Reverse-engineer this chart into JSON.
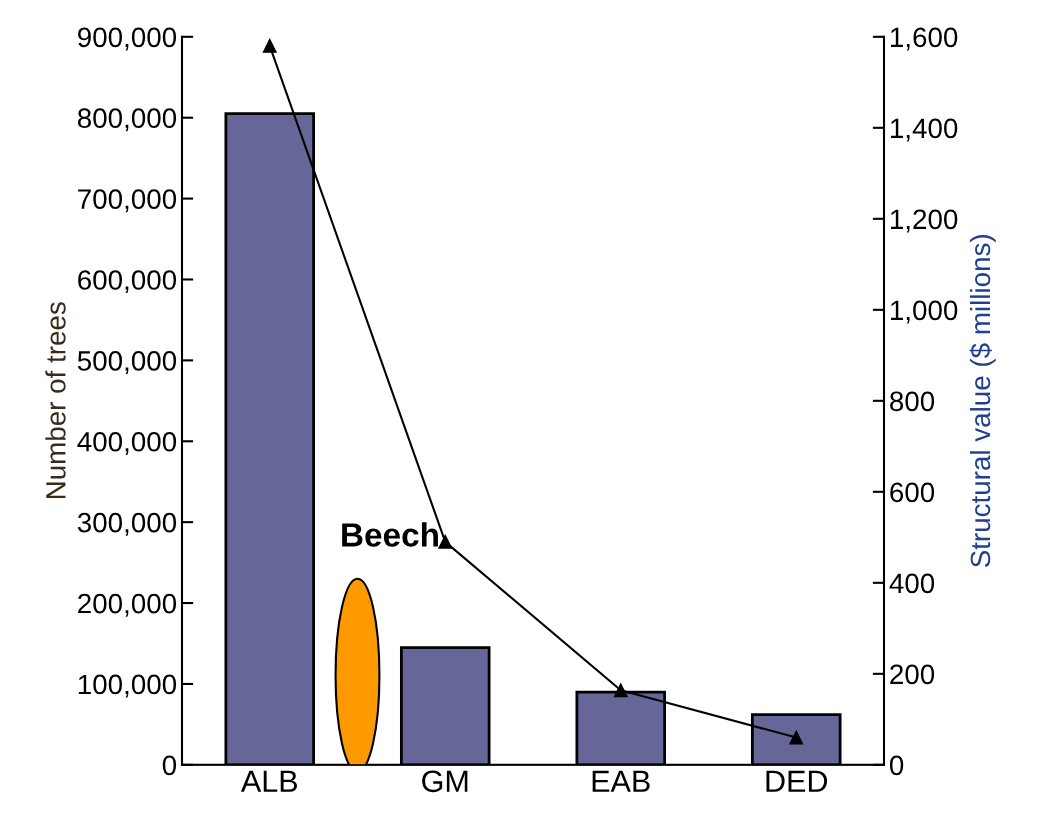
{
  "chart_data": {
    "type": "bar",
    "categories": [
      "ALB",
      "GM",
      "EAB",
      "DED"
    ],
    "ylabel": "Number of trees",
    "y2label": "Structural value ($ millions)",
    "series": [
      {
        "color": "#676698",
        "values": [
          805000,
          145000,
          90000,
          62000
        ]
      },
      {
        "type": "line",
        "axis": "y2",
        "color": "#000000",
        "marker": "triangle",
        "values": [
          1580,
          490,
          164,
          60
        ]
      }
    ],
    "ylim": [
      0,
      900000
    ],
    "yticks": [
      {
        "value": 0,
        "label": "0"
      },
      {
        "value": 100000,
        "label": "100,000"
      },
      {
        "value": 200000,
        "label": "200,000"
      },
      {
        "value": 300000,
        "label": "300,000"
      },
      {
        "value": 400000,
        "label": "400,000"
      },
      {
        "value": 500000,
        "label": "500,000"
      },
      {
        "value": 600000,
        "label": "600,000"
      },
      {
        "value": 700000,
        "label": "700,000"
      },
      {
        "value": 800000,
        "label": "800,000"
      },
      {
        "value": 900000,
        "label": "900,000"
      }
    ],
    "y2lim": [
      0,
      1600
    ],
    "y2ticks": [
      {
        "value": 0,
        "label": "0"
      },
      {
        "value": 200,
        "label": "200"
      },
      {
        "value": 400,
        "label": "400"
      },
      {
        "value": 600,
        "label": "600"
      },
      {
        "value": 800,
        "label": "800"
      },
      {
        "value": 1000,
        "label": "1,000"
      },
      {
        "value": 1200,
        "label": "1,200"
      },
      {
        "value": 1400,
        "label": "1,400"
      },
      {
        "value": 1600,
        "label": "1,600"
      }
    ],
    "annotations": [
      "Beech"
    ],
    "grid": false,
    "legend": false
  }
}
